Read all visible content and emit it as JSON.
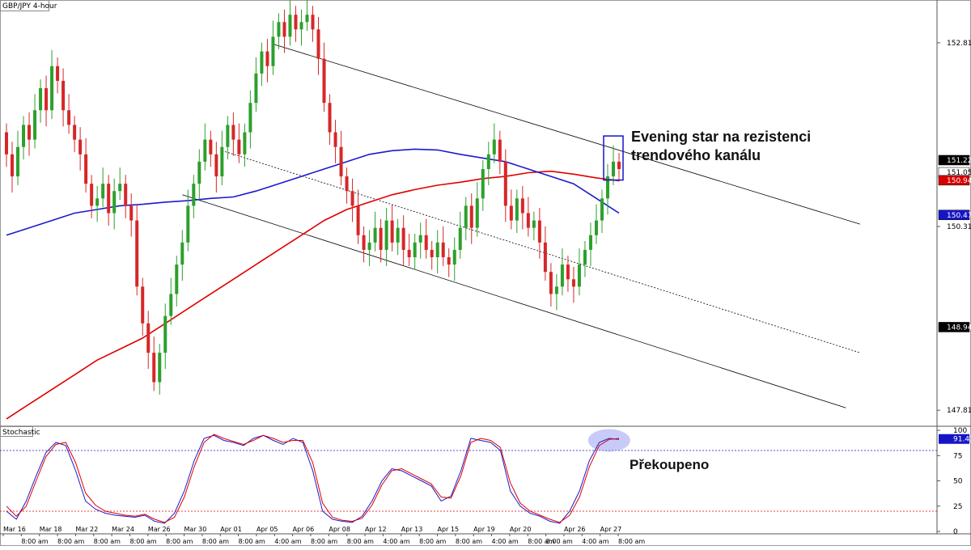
{
  "chart_data": [
    {
      "type": "candlestick",
      "title": "GBP/JPY 4-hour",
      "ylim": [
        147.6,
        153.4
      ],
      "y_ticks": [
        "152.818",
        "150.318",
        "147.818"
      ],
      "price_tags": [
        {
          "value": 151.221,
          "label": "151.221",
          "color": "#ffffff",
          "bg": "#000000"
        },
        {
          "value": 151.055,
          "label": "151.055",
          "color": "#000000",
          "bg": "#ffffff"
        },
        {
          "value": 150.947,
          "label": "150.947",
          "color": "#ffffff",
          "bg": "#d40000"
        },
        {
          "value": 150.475,
          "label": "150.475",
          "color": "#ffffff",
          "bg": "#1515c8"
        },
        {
          "value": 148.949,
          "label": "148.949",
          "color": "#ffffff",
          "bg": "#000000"
        }
      ],
      "colors": {
        "up": "#2ca02c",
        "down": "#d62728",
        "ma_fast": "#1a1acd",
        "ma_slow": "#e00000",
        "channel": "#000000"
      },
      "candles": [
        [
          151.6,
          151.3
        ],
        [
          151.3,
          151.0
        ],
        [
          151.0,
          151.4
        ],
        [
          151.4,
          151.7
        ],
        [
          151.7,
          151.5
        ],
        [
          151.5,
          151.9
        ],
        [
          151.9,
          152.2
        ],
        [
          152.2,
          151.9
        ],
        [
          151.9,
          152.5
        ],
        [
          152.5,
          152.3
        ],
        [
          152.3,
          151.9
        ],
        [
          151.9,
          151.7
        ],
        [
          151.7,
          151.5
        ],
        [
          151.5,
          151.3
        ],
        [
          151.3,
          150.9
        ],
        [
          150.9,
          150.6
        ],
        [
          150.6,
          150.7
        ],
        [
          150.7,
          150.9
        ],
        [
          150.9,
          150.5
        ],
        [
          150.5,
          150.8
        ],
        [
          150.8,
          150.9
        ],
        [
          150.9,
          150.6
        ],
        [
          150.6,
          150.4
        ],
        [
          150.4,
          149.5
        ],
        [
          149.5,
          149.0
        ],
        [
          149.0,
          148.6
        ],
        [
          148.6,
          148.2
        ],
        [
          148.2,
          148.6
        ],
        [
          148.6,
          149.1
        ],
        [
          149.1,
          149.4
        ],
        [
          149.4,
          149.8
        ],
        [
          149.8,
          150.1
        ],
        [
          150.1,
          150.6
        ],
        [
          150.6,
          150.9
        ],
        [
          150.9,
          151.2
        ],
        [
          151.2,
          151.5
        ],
        [
          151.5,
          151.3
        ],
        [
          151.3,
          151.0
        ],
        [
          151.0,
          151.4
        ],
        [
          151.4,
          151.7
        ],
        [
          151.7,
          151.5
        ],
        [
          151.5,
          151.3
        ],
        [
          151.3,
          151.6
        ],
        [
          151.6,
          152.0
        ],
        [
          152.0,
          152.4
        ],
        [
          152.4,
          152.7
        ],
        [
          152.7,
          152.5
        ],
        [
          152.5,
          152.9
        ],
        [
          152.9,
          153.1
        ],
        [
          153.1,
          152.9
        ],
        [
          152.9,
          153.2
        ],
        [
          153.2,
          153.0
        ],
        [
          153.0,
          153.1
        ],
        [
          153.1,
          153.2
        ],
        [
          153.2,
          153.0
        ],
        [
          153.0,
          152.6
        ],
        [
          152.6,
          152.0
        ],
        [
          152.0,
          151.6
        ],
        [
          151.6,
          151.4
        ],
        [
          151.4,
          151.0
        ],
        [
          151.0,
          150.8
        ],
        [
          150.8,
          150.6
        ],
        [
          150.6,
          150.2
        ],
        [
          150.2,
          150.0
        ],
        [
          150.0,
          150.1
        ],
        [
          150.1,
          150.3
        ],
        [
          150.3,
          150.0
        ],
        [
          150.0,
          150.4
        ],
        [
          150.4,
          150.1
        ],
        [
          150.1,
          150.3
        ],
        [
          150.3,
          150.0
        ],
        [
          150.0,
          149.9
        ],
        [
          149.9,
          150.1
        ],
        [
          150.1,
          150.2
        ],
        [
          150.2,
          150.0
        ],
        [
          150.0,
          149.9
        ],
        [
          149.9,
          150.1
        ],
        [
          150.1,
          149.9
        ],
        [
          149.9,
          149.8
        ],
        [
          149.8,
          150.0
        ],
        [
          150.0,
          150.3
        ],
        [
          150.3,
          150.6
        ],
        [
          150.6,
          150.3
        ],
        [
          150.3,
          150.7
        ],
        [
          150.7,
          151.1
        ],
        [
          151.1,
          151.3
        ],
        [
          151.3,
          151.5
        ],
        [
          151.5,
          151.2
        ],
        [
          151.2,
          150.6
        ],
        [
          150.6,
          150.4
        ],
        [
          150.4,
          150.7
        ],
        [
          150.7,
          150.5
        ],
        [
          150.5,
          150.3
        ],
        [
          150.3,
          150.4
        ],
        [
          150.4,
          150.1
        ],
        [
          150.1,
          149.7
        ],
        [
          149.7,
          149.4
        ],
        [
          149.4,
          149.5
        ],
        [
          149.5,
          149.8
        ],
        [
          149.8,
          149.6
        ],
        [
          149.6,
          149.5
        ],
        [
          149.5,
          149.8
        ],
        [
          149.8,
          150.0
        ],
        [
          150.0,
          150.2
        ],
        [
          150.2,
          150.4
        ],
        [
          150.4,
          150.7
        ],
        [
          150.7,
          151.0
        ],
        [
          151.0,
          151.2
        ],
        [
          151.2,
          151.1
        ]
      ],
      "ma_fast": [
        150.2,
        150.3,
        150.4,
        150.5,
        150.55,
        150.6,
        150.62,
        150.65,
        150.67,
        150.7,
        150.72,
        150.8,
        150.9,
        151.0,
        151.1,
        151.2,
        151.3,
        151.35,
        151.37,
        151.36,
        151.3,
        151.25,
        151.2,
        151.1,
        151.0,
        150.9,
        150.7,
        150.5
      ],
      "ma_slow": [
        147.7,
        147.9,
        148.1,
        148.3,
        148.5,
        148.65,
        148.8,
        149.0,
        149.2,
        149.4,
        149.6,
        149.8,
        150.0,
        150.2,
        150.4,
        150.55,
        150.65,
        150.75,
        150.82,
        150.88,
        150.92,
        150.97,
        151.0,
        151.05,
        151.07,
        151.03,
        150.98,
        150.94
      ]
    },
    {
      "type": "line",
      "title": "Stochastic",
      "ylim": [
        0,
        100
      ],
      "y_ticks": [
        "100",
        "75",
        "50",
        "25",
        "0"
      ],
      "levels": [
        80,
        20
      ],
      "value_tag": "91.41",
      "x_labels": [
        "Mar 16",
        "8:00 am",
        "Mar 18",
        "8:00 am",
        "Mar 22",
        "8:00 am",
        "Mar 24",
        "8:00 am",
        "Mar 26",
        "8:00 am",
        "Mar 30",
        "8:00 am",
        "Apr 01",
        "8:00 am",
        "Apr 05",
        "4:00 am",
        "Apr 06",
        "8:00 am",
        "Apr 08",
        "8:00 am",
        "Apr 12",
        "4:00 am",
        "Apr 13",
        "8:00 am",
        "Apr 15",
        "8:00 am",
        "Apr 19",
        "4:00 am",
        "Apr 20",
        "8:00 am",
        "8:00 am",
        "Apr 26",
        "4:00 am",
        "Apr 27",
        "8:00 am"
      ],
      "series": [
        {
          "color": "#1a1acd",
          "values": [
            20,
            12,
            30,
            55,
            78,
            88,
            85,
            60,
            30,
            22,
            18,
            16,
            15,
            14,
            16,
            10,
            8,
            18,
            40,
            70,
            92,
            95,
            90,
            88,
            85,
            92,
            95,
            90,
            86,
            92,
            88,
            60,
            20,
            12,
            10,
            9,
            15,
            30,
            50,
            62,
            60,
            55,
            50,
            45,
            30,
            35,
            60,
            92,
            90,
            88,
            80,
            40,
            25,
            18,
            15,
            10,
            8,
            20,
            40,
            70,
            88,
            92,
            91
          ]
        },
        {
          "color": "#e00000",
          "values": [
            25,
            15,
            25,
            50,
            74,
            86,
            88,
            68,
            38,
            26,
            20,
            18,
            16,
            15,
            17,
            12,
            9,
            14,
            34,
            64,
            88,
            96,
            92,
            89,
            86,
            90,
            95,
            92,
            88,
            90,
            90,
            68,
            28,
            14,
            11,
            10,
            13,
            26,
            46,
            60,
            62,
            57,
            52,
            47,
            34,
            33,
            55,
            88,
            92,
            90,
            83,
            48,
            28,
            20,
            16,
            12,
            9,
            16,
            34,
            64,
            85,
            91,
            92
          ]
        }
      ]
    }
  ],
  "annotations": {
    "evening_star_line1": "Evening star na rezistenci",
    "evening_star_line2": "trendového kanálu",
    "overbought": "Překoupeno"
  }
}
